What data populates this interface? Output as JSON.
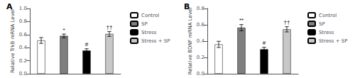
{
  "chart_data": [
    {
      "type": "bar",
      "title": "A",
      "ylabel": "Relative TrkB mRNA Level",
      "categories": [
        "Control",
        "SP",
        "Stress",
        "Stress + SP"
      ],
      "values": [
        0.51,
        0.58,
        0.355,
        0.61
      ],
      "errors": [
        0.045,
        0.028,
        0.028,
        0.038
      ],
      "colors": [
        "#ffffff",
        "#7f7f7f",
        "#000000",
        "#c8c8c8"
      ],
      "annotations": [
        null,
        "*",
        "#",
        "††"
      ],
      "ylim": [
        0.0,
        1.0
      ],
      "yticks": [
        {
          "value": 0,
          "label": "0.0"
        },
        0.2,
        0.4,
        0.6,
        0.8,
        {
          "value": 1,
          "label": "1.0"
        }
      ],
      "grid": false,
      "tick_labels": "y",
      "legend": "upper right"
    },
    {
      "type": "bar",
      "title": "B",
      "ylabel": "Relative BDNF mRNA Level",
      "categories": [
        "Control",
        "SP",
        "Stress",
        "Stress + SP"
      ],
      "values": [
        0.36,
        0.565,
        0.3,
        0.545
      ],
      "errors": [
        0.038,
        0.038,
        0.025,
        0.032
      ],
      "colors": [
        "#ffffff",
        "#7f7f7f",
        "#000000",
        "#c8c8c8"
      ],
      "annotations": [
        null,
        "**",
        "#",
        "††"
      ],
      "ylim": [
        0.0,
        0.8
      ],
      "yticks": [
        {
          "value": 0,
          "label": "0.0"
        },
        0.2,
        0.4,
        0.6,
        0.8
      ],
      "grid": false,
      "tick_labels": "y",
      "legend": "upper right"
    }
  ]
}
